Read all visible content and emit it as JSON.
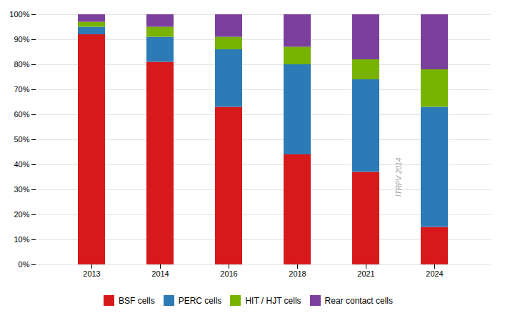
{
  "chart_data": {
    "type": "bar",
    "stacked": true,
    "categories": [
      "2013",
      "2014",
      "2016",
      "2018",
      "2021",
      "2024"
    ],
    "series": [
      {
        "name": "BSF cells",
        "color": "#d7191c",
        "values": [
          92,
          81,
          63,
          44,
          37,
          15
        ]
      },
      {
        "name": "PERC cells",
        "color": "#2c7bb6",
        "values": [
          3,
          10,
          23,
          36,
          37,
          48
        ]
      },
      {
        "name": "HIT / HJT cells",
        "color": "#77b300",
        "values": [
          2,
          4,
          5,
          7,
          8,
          15
        ]
      },
      {
        "name": "Rear contact cells",
        "color": "#7b3f9e",
        "values": [
          3,
          5,
          9,
          13,
          18,
          22
        ]
      }
    ],
    "ylim": [
      0,
      100
    ],
    "yticks": [
      {
        "value": 0,
        "label": "0%"
      },
      {
        "value": 10,
        "label": "10%"
      },
      {
        "value": 20,
        "label": "20%"
      },
      {
        "value": 30,
        "label": "30%"
      },
      {
        "value": 40,
        "label": "40%"
      },
      {
        "value": 50,
        "label": "50%"
      },
      {
        "value": 60,
        "label": "60%"
      },
      {
        "value": 70,
        "label": "70%"
      },
      {
        "value": 80,
        "label": "80%"
      },
      {
        "value": 90,
        "label": "90%"
      },
      {
        "value": 100,
        "label": "100%"
      }
    ],
    "grid": true,
    "legend": "bottom",
    "annotations": [
      "ITRPV 2014"
    ]
  }
}
